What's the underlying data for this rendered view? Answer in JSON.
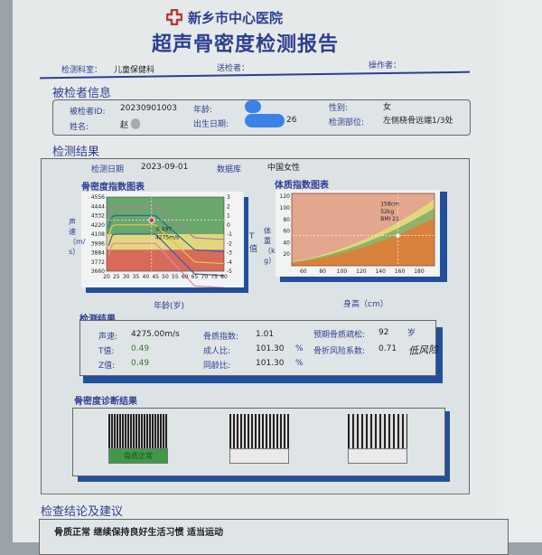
{
  "header": {
    "hospital": "新乡市中心医院",
    "title": "超声骨密度检测报告",
    "department_label": "检测科室：",
    "department": "儿童保健科",
    "sender_label": "送检者：",
    "operator_label": "操作者："
  },
  "patient": {
    "heading": "被检者信息",
    "id_label": "被检者ID:",
    "id": "20230901003",
    "name_label": "姓名:",
    "name": "赵",
    "age_label": "年龄:",
    "dob_label": "出生日期:",
    "dob_suffix": "26",
    "sex_label": "性别:",
    "sex": "女",
    "site_label": "检测部位:",
    "site": "左侧桡骨远端1/3处"
  },
  "results": {
    "heading": "检测结果",
    "date_label": "检测日期",
    "date": "2023-09-01",
    "db_label": "数据库",
    "db": "中国女性"
  },
  "bone_chart": {
    "title": "骨密度指数图表",
    "ylabel": "声速（m/s）",
    "y2label": "T值",
    "xlabel": "年龄(岁)",
    "yticks": [
      "4556",
      "4444",
      "4332",
      "4220",
      "4108",
      "3996",
      "3884",
      "3772",
      "3660"
    ],
    "y2ticks": [
      "3",
      "2",
      "1",
      "0",
      "-1",
      "-2",
      "-3",
      "-4",
      "-5"
    ],
    "xticks": [
      "20",
      "25",
      "30",
      "35",
      "40",
      "45",
      "50",
      "55",
      "60",
      "65",
      "70",
      "75",
      "80"
    ],
    "ylim": [
      3660,
      4556
    ],
    "xlim": [
      20,
      80
    ],
    "bands": [
      {
        "from": 4108,
        "to": 4556,
        "color": "#6aa76a"
      },
      {
        "from": 3920,
        "to": 4108,
        "color": "#e2d77a"
      },
      {
        "from": 3660,
        "to": 3920,
        "color": "#d86a5a"
      }
    ],
    "curves": [
      {
        "peak": 4444,
        "color": "#b07ab0"
      },
      {
        "peak": 4332,
        "color": "#3a5ca8"
      },
      {
        "peak": 4220,
        "color": "#d8c85a"
      },
      {
        "peak": 4108,
        "color": "#3a5ca8"
      },
      {
        "peak": 3996,
        "color": "#d88ab0"
      }
    ],
    "point": {
      "age": 43,
      "speed": 4275
    },
    "point_label1": "0.49T",
    "point_label2": "4275m/s"
  },
  "bmi_chart": {
    "title": "体质指数图表",
    "ylabel": "体重（kg）",
    "xlabel": "身高（cm）",
    "yticks": [
      "120",
      "100",
      "80",
      "60",
      "40",
      "20"
    ],
    "xticks": [
      "60",
      "80",
      "100",
      "120",
      "140",
      "160",
      "180"
    ],
    "xlim": [
      48,
      196
    ],
    "ylim": [
      0,
      125
    ],
    "point": {
      "height": 158,
      "weight": 52
    },
    "label1": "158cm",
    "label2": "52kg",
    "label3": "BMI 21"
  },
  "measure": {
    "heading": "检测结果",
    "speed_label": "声速:",
    "speed": "4275.00m/s",
    "t_label": "T值:",
    "t": "0.49",
    "z_label": "Z值:",
    "z": "0.49",
    "bqi_label": "骨质指数:",
    "bqi": "1.01",
    "adult_label": "成人比:",
    "adult": "101.30",
    "adult_unit": "%",
    "same_label": "同龄比:",
    "same": "101.30",
    "same_unit": "%",
    "expect_label": "预期骨质疏松:",
    "expect": "92",
    "expect_unit": "岁",
    "risk_label": "骨折风险系数:",
    "risk": "0.71",
    "risk_note": "低风险"
  },
  "diagnosis": {
    "heading": "骨密度诊断结果",
    "items": [
      {
        "label": "骨质正常",
        "active": true
      },
      {
        "label": "",
        "active": false
      },
      {
        "label": "",
        "active": false
      }
    ]
  },
  "conclusion": {
    "heading": "检查结论及建议",
    "text": "骨质正常  继续保持良好生活习惯  适当运动"
  }
}
